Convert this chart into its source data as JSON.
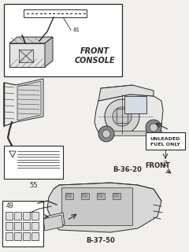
{
  "bg_color": "#f2f0ec",
  "line_color": "#2a2a2a",
  "labels": {
    "front_console": "FRONT\nCONSOLE",
    "num_81": "81",
    "num_55": "55",
    "num_2": "2",
    "num_49": "49",
    "b3620": "B-36-20",
    "b3750": "B-37-50",
    "front": "FRONT",
    "unleaded_l1": "UNLEADED",
    "unleaded_l2": "FUEL ONLY"
  }
}
